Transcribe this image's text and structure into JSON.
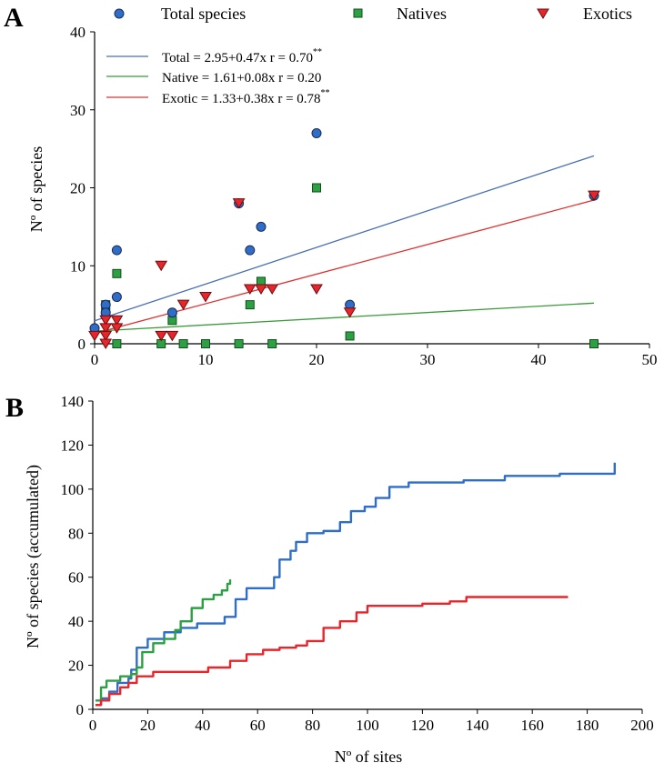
{
  "chart_data": [
    {
      "panel": "A",
      "type": "scatter",
      "xlabel": "",
      "ylabel": "Nº of species",
      "xlim": [
        0,
        50
      ],
      "ylim": [
        0,
        40
      ],
      "xticks": [
        "0",
        "10",
        "20",
        "30",
        "40",
        "50"
      ],
      "yticks": [
        "0",
        "10",
        "20",
        "30",
        "40"
      ],
      "legend": [
        {
          "label": "Total species",
          "marker": "circle",
          "color": "#2f6ec8"
        },
        {
          "label": "Natives",
          "marker": "square",
          "color": "#2ca043"
        },
        {
          "label": "Exotics",
          "marker": "triangle-down",
          "color": "#e8252a"
        }
      ],
      "series": [
        {
          "name": "Total species",
          "marker": "circle",
          "color": "#2f6ec8",
          "points": [
            [
              0,
              2
            ],
            [
              1,
              5
            ],
            [
              1,
              4
            ],
            [
              2,
              12
            ],
            [
              2,
              6
            ],
            [
              7,
              4
            ],
            [
              13,
              18
            ],
            [
              14,
              12
            ],
            [
              15,
              15
            ],
            [
              20,
              27
            ],
            [
              23,
              5
            ],
            [
              45,
              19
            ]
          ]
        },
        {
          "name": "Natives",
          "marker": "square",
          "color": "#2ca043",
          "points": [
            [
              1,
              5
            ],
            [
              1,
              4
            ],
            [
              2,
              9
            ],
            [
              2,
              0
            ],
            [
              6,
              0
            ],
            [
              7,
              3
            ],
            [
              8,
              0
            ],
            [
              10,
              0
            ],
            [
              13,
              0
            ],
            [
              14,
              5
            ],
            [
              15,
              8
            ],
            [
              16,
              0
            ],
            [
              20,
              20
            ],
            [
              23,
              1
            ],
            [
              45,
              0
            ]
          ]
        },
        {
          "name": "Exotics",
          "marker": "triangle-down",
          "color": "#e8252a",
          "points": [
            [
              0,
              1
            ],
            [
              1,
              3
            ],
            [
              1,
              2
            ],
            [
              1,
              1
            ],
            [
              1,
              0
            ],
            [
              2,
              3
            ],
            [
              2,
              2
            ],
            [
              6,
              10
            ],
            [
              6,
              1
            ],
            [
              7,
              1
            ],
            [
              8,
              5
            ],
            [
              10,
              6
            ],
            [
              13,
              18
            ],
            [
              14,
              7
            ],
            [
              15,
              7
            ],
            [
              16,
              7
            ],
            [
              20,
              7
            ],
            [
              23,
              4
            ],
            [
              45,
              19
            ]
          ]
        }
      ],
      "regressions": [
        {
          "name": "Total",
          "color": "#4a6fb5",
          "intercept": 2.95,
          "slope": 0.47,
          "x_range": [
            0,
            45
          ],
          "label": "Total = 2.95+0.47x  r = 0.70",
          "significance": "**"
        },
        {
          "name": "Native",
          "color": "#3a9a3a",
          "intercept": 1.61,
          "slope": 0.08,
          "x_range": [
            0,
            45
          ],
          "label": "Native = 1.61+0.08x  r = 0.20",
          "significance": ""
        },
        {
          "name": "Exotic",
          "color": "#e03030",
          "intercept": 1.33,
          "slope": 0.38,
          "x_range": [
            0,
            45
          ],
          "label": "Exotic = 1.33+0.38x  r = 0.78",
          "significance": "**"
        }
      ]
    },
    {
      "panel": "B",
      "type": "line",
      "xlabel": "Nº of sites",
      "ylabel": "Nº of species (accumulated)",
      "xlim": [
        0,
        200
      ],
      "ylim": [
        0,
        140
      ],
      "xticks": [
        "0",
        "20",
        "40",
        "60",
        "80",
        "100",
        "120",
        "140",
        "160",
        "180",
        "200"
      ],
      "yticks": [
        "0",
        "20",
        "40",
        "60",
        "80",
        "100",
        "120",
        "140"
      ],
      "series": [
        {
          "color": "#2f6ec8",
          "points": [
            [
              1,
              2
            ],
            [
              3,
              5
            ],
            [
              6,
              8
            ],
            [
              9,
              12
            ],
            [
              13,
              14
            ],
            [
              14,
              18
            ],
            [
              16,
              28
            ],
            [
              20,
              32
            ],
            [
              26,
              35
            ],
            [
              32,
              37
            ],
            [
              38,
              39
            ],
            [
              44,
              39
            ],
            [
              48,
              42
            ],
            [
              52,
              50
            ],
            [
              56,
              55
            ],
            [
              62,
              55
            ],
            [
              66,
              60
            ],
            [
              68,
              68
            ],
            [
              72,
              72
            ],
            [
              74,
              76
            ],
            [
              78,
              80
            ],
            [
              84,
              81
            ],
            [
              90,
              85
            ],
            [
              94,
              90
            ],
            [
              99,
              92
            ],
            [
              103,
              96
            ],
            [
              108,
              101
            ],
            [
              115,
              103
            ],
            [
              135,
              104
            ],
            [
              150,
              106
            ],
            [
              170,
              107
            ],
            [
              189,
              107
            ],
            [
              190,
              112
            ]
          ]
        },
        {
          "color": "#2ca043",
          "points": [
            [
              1,
              4
            ],
            [
              3,
              10
            ],
            [
              5,
              13
            ],
            [
              10,
              15
            ],
            [
              14,
              16
            ],
            [
              16,
              19
            ],
            [
              18,
              26
            ],
            [
              22,
              30
            ],
            [
              26,
              32
            ],
            [
              30,
              36
            ],
            [
              32,
              40
            ],
            [
              36,
              46
            ],
            [
              40,
              50
            ],
            [
              44,
              52
            ],
            [
              47,
              54
            ],
            [
              49,
              57
            ],
            [
              50,
              59
            ]
          ]
        },
        {
          "color": "#e8252a",
          "points": [
            [
              1,
              2
            ],
            [
              3,
              4
            ],
            [
              6,
              7
            ],
            [
              10,
              10
            ],
            [
              13,
              12
            ],
            [
              16,
              15
            ],
            [
              22,
              17
            ],
            [
              36,
              17
            ],
            [
              42,
              19
            ],
            [
              50,
              22
            ],
            [
              56,
              25
            ],
            [
              62,
              27
            ],
            [
              68,
              28
            ],
            [
              74,
              29
            ],
            [
              78,
              31
            ],
            [
              84,
              37
            ],
            [
              90,
              40
            ],
            [
              96,
              44
            ],
            [
              100,
              47
            ],
            [
              112,
              47
            ],
            [
              120,
              48
            ],
            [
              130,
              49
            ],
            [
              136,
              51
            ],
            [
              160,
              51
            ],
            [
              173,
              51
            ]
          ]
        }
      ]
    }
  ]
}
